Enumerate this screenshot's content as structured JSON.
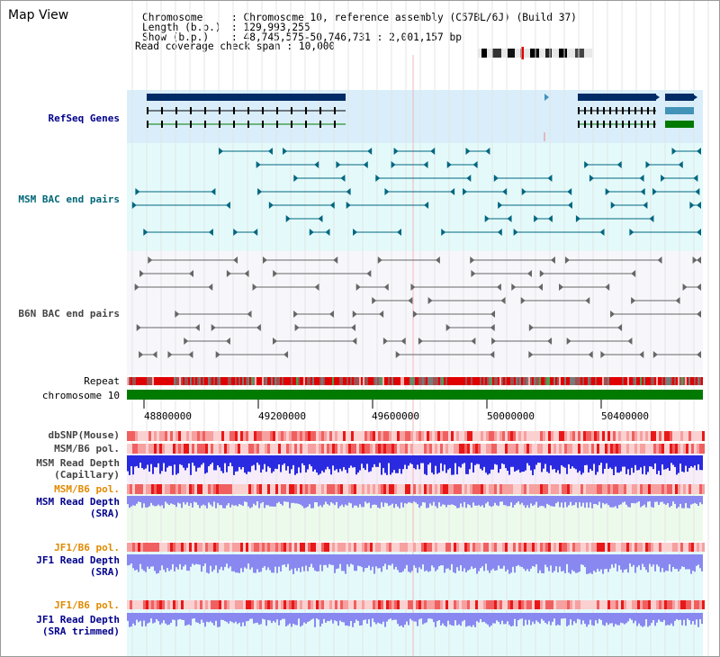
{
  "page": {
    "title": "Map View"
  },
  "info": {
    "chromosome_key": "Chromosome",
    "chromosome_val": ": Chromosome 10, reference assembly (C57BL/6J) (Build 37)",
    "length_key": "Length (b.p.)",
    "length_val": ": 129,993,255",
    "show_key": "Show (b.p.)",
    "show_val": ": 48,745,575-50,746,731 : 2,001,157 bp",
    "coverage_line": "Read coverage check span : 10,000"
  },
  "tracks": {
    "refseq": "RefSeq Genes",
    "msm_bac": "MSM BAC end pairs",
    "b6n_bac": "B6N BAC end pairs",
    "repeat": "Repeat",
    "chromosome": "chromosome 10",
    "dbsnp": "dbSNP(Mouse)",
    "msm_pol": "MSM/B6 pol.",
    "msm_depth_cap_1": "MSM Read Depth",
    "msm_depth_cap_2": "(Capillary)",
    "msm_pol_2": "MSM/B6 pol.",
    "msm_depth_sra_1": "MSM Read Depth",
    "msm_depth_sra_2": "(SRA)",
    "jf1_pol": "JF1/B6 pol.",
    "jf1_depth_sra_1": "JF1 Read Depth",
    "jf1_depth_sra_2": "(SRA)",
    "jf1_pol_2": "JF1/B6 pol.",
    "jf1_depth_trim_1": "JF1 Read Depth",
    "jf1_depth_trim_2": "(SRA trimmed)"
  },
  "axis": {
    "ticks": [
      "48800000",
      "49200000",
      "49600000",
      "50000000",
      "50400000"
    ]
  },
  "colors": {
    "refseq_bg": "#d9eefa",
    "msm_bac_bg": "#e4fafa",
    "b6n_bg": "#f7f7fb",
    "gene_dark": "#002b66",
    "gene_teal": "#4393b9",
    "gene_green": "#007a00",
    "msm_line": "#006680",
    "b6n_line": "#666666",
    "chrom_green": "#007a00",
    "depth_blue": "#2a2ae0",
    "depth_lightblue": "#8888f0",
    "label_navy": "#00008b",
    "label_teal": "#006677",
    "label_orange": "#e08a00",
    "label_gray": "#444444"
  }
}
